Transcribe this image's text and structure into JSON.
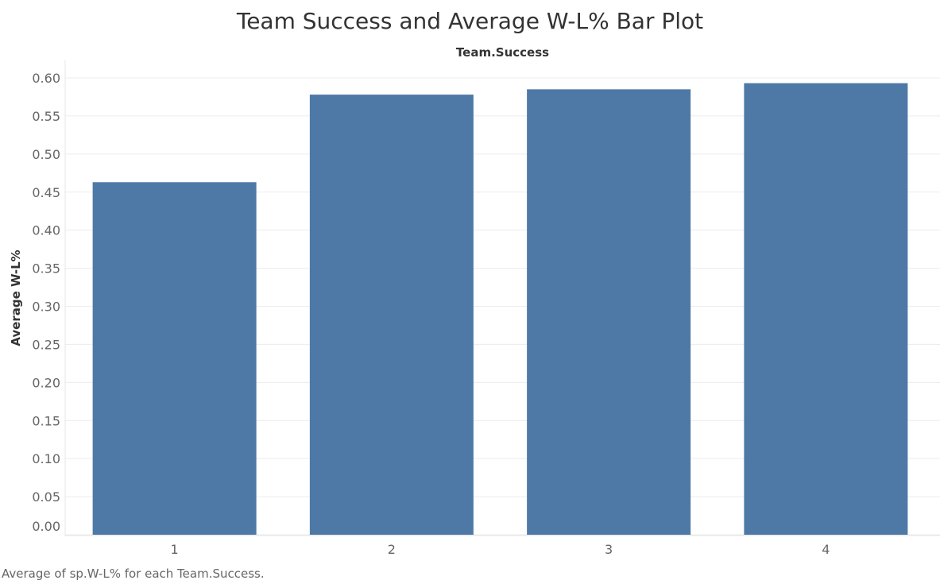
{
  "chart_data": {
    "type": "bar",
    "title": "Team Success and Average W-L% Bar Plot",
    "x_header": "Team.Success",
    "xlabel": "",
    "ylabel": "Average W-L%",
    "caption": "Average of sp.W-L% for each Team.Success.",
    "categories": [
      "1",
      "2",
      "3",
      "4"
    ],
    "values": [
      0.463,
      0.578,
      0.585,
      0.593
    ],
    "ylim": [
      0,
      0.6
    ],
    "yticks": [
      "0.00",
      "0.05",
      "0.10",
      "0.15",
      "0.20",
      "0.25",
      "0.30",
      "0.35",
      "0.40",
      "0.45",
      "0.50",
      "0.55",
      "0.60"
    ],
    "bar_color": "#4e79a7",
    "grid": true
  }
}
